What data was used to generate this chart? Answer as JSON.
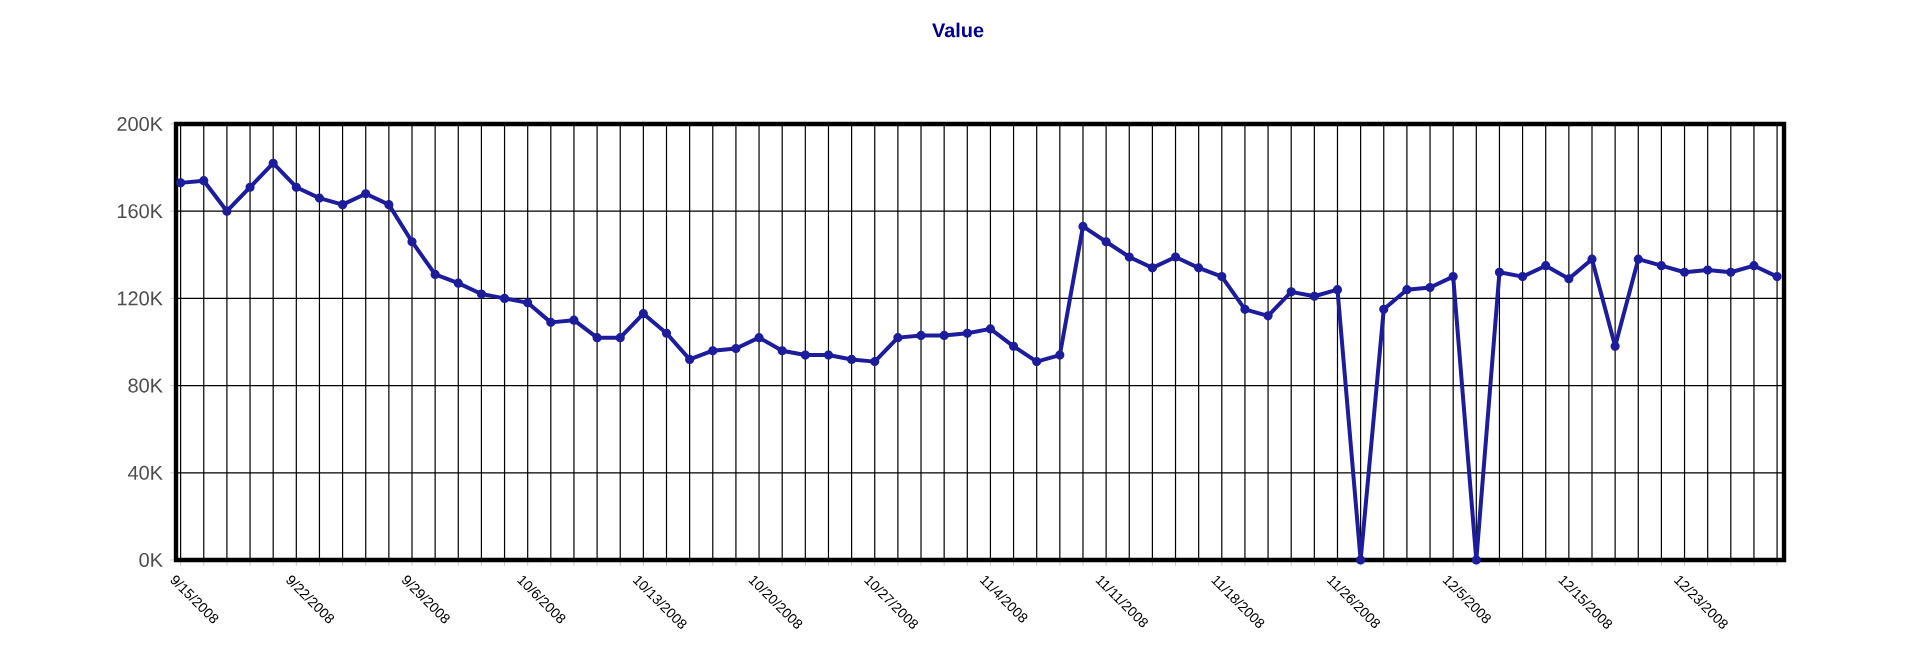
{
  "chart_data": {
    "type": "line",
    "title": "Value",
    "categories": [
      "9/15/2008",
      null,
      null,
      null,
      null,
      "9/22/2008",
      null,
      null,
      null,
      null,
      "9/29/2008",
      null,
      null,
      null,
      null,
      "10/6/2008",
      null,
      null,
      null,
      null,
      "10/13/2008",
      null,
      null,
      null,
      null,
      "10/20/2008",
      null,
      null,
      null,
      null,
      "10/27/2008",
      null,
      null,
      null,
      null,
      "11/4/2008",
      null,
      null,
      null,
      null,
      "11/11/2008",
      null,
      null,
      null,
      null,
      "11/18/2008",
      null,
      null,
      null,
      null,
      "11/26/2008",
      null,
      null,
      null,
      null,
      "12/5/2008",
      null,
      null,
      null,
      null,
      "12/15/2008",
      null,
      null,
      null,
      null,
      "12/23/2008",
      null,
      null,
      null,
      null
    ],
    "series": [
      {
        "color": "#1c1c9c",
        "values": [
          173000,
          174000,
          160000,
          171000,
          182000,
          171000,
          166000,
          163000,
          168000,
          163000,
          146000,
          131000,
          127000,
          122000,
          120000,
          118000,
          109000,
          110000,
          102000,
          102000,
          113000,
          104000,
          92000,
          96000,
          97000,
          102000,
          96000,
          94000,
          94000,
          92000,
          91000,
          102000,
          103000,
          103000,
          104000,
          106000,
          98000,
          91000,
          94000,
          153000,
          146000,
          139000,
          134000,
          139000,
          134000,
          130000,
          115000,
          112000,
          123000,
          121000,
          124000,
          0,
          115000,
          124000,
          125000,
          130000,
          0,
          132000,
          130000,
          135000,
          129000,
          138000,
          98000,
          138000,
          135000,
          132000,
          133000,
          132000,
          135000,
          130000
        ]
      }
    ],
    "ylim": [
      0,
      200000
    ],
    "yticks": [
      {
        "value": 0,
        "label": "0K"
      },
      {
        "value": 40000,
        "label": "40K"
      },
      {
        "value": 80000,
        "label": "80K"
      },
      {
        "value": 120000,
        "label": "120K"
      },
      {
        "value": 160000,
        "label": "160K"
      },
      {
        "value": 200000,
        "label": "200K"
      }
    ],
    "grid": true,
    "marker": "circle",
    "line_style": "solid"
  }
}
